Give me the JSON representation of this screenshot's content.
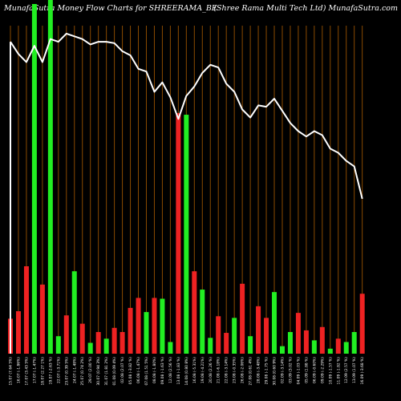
{
  "header": {
    "left": "MunafaSutra  Money Flow  Charts for SHREERAMA_BE",
    "right": "(Shree   Rama  Multi   Tech Ltd) MunafaSutra.com"
  },
  "colors": {
    "background": "#000000",
    "up": "#22ee22",
    "down": "#ee2222",
    "grid": "#8a4a00",
    "line": "#ffffff"
  },
  "chart_data": {
    "type": "bar",
    "title": "MunafaSutra Money Flow Charts for SHREERAMA_BE",
    "categories": [
      "15.07 (7.64 5%)",
      "16.07 (-1.86%)",
      "17.07 (3.43 5%)",
      "17.07 (-1.47%)",
      "18.07 (2.27 1%)",
      "19.07 (-2.63 %)",
      "22.07 (-3.71%)",
      "23.07 (0.39 5%)",
      "24.07 (-1.48%)",
      "25.07 (0.74 2%)",
      "29.07 (2.00 %)",
      "30.07 (0.94 3%)",
      "31.07 (1.81 2%)",
      "01.08 (0.09 4%)",
      "02.08 (2.07 %)",
      "05.08 (-3.82 %)",
      "06.08 (-1.47%)",
      "07.08 (1.51 5%)",
      "08.08 (-1.80%)",
      "09.08 (-1.63 %)",
      "12.08 (2.56 %)",
      "13.08 (-1.83 %)",
      "14.08 (0.80 8%)",
      "16.08 (-5.31%)",
      "19.08 (-4.21%)",
      "20.08 (2.26 %)",
      "21.08 (-6.18%)",
      "22.08 (-3.14%)",
      "23.08 (-0.35%)",
      "26.08 (-2.06%)",
      "27.08 (0.61 4%)",
      "28.08 (-3.48%)",
      "29.08 (-1.75 %)",
      "30.08 (0.60 9%)",
      "02.09 (-3.14%)",
      "03.09 (3.02 %)",
      "04.09 (-1.03 %)",
      "05.09 (1.88 %)",
      "06.09 (-0.60%)",
      "09.09 (-2.29%)",
      "10.09 (-1.57 %)",
      "11.09 (-1.82 %)",
      "12.09 (2.57 %)",
      "13.09 (1.07 %)",
      "16.09 (-3.68 %)"
    ],
    "money_flow": [
      42,
      51,
      105,
      420,
      83,
      480,
      21,
      46,
      99,
      36,
      13,
      26,
      18,
      31,
      26,
      55,
      67,
      50,
      67,
      66,
      14,
      289,
      287,
      99,
      77,
      19,
      45,
      25,
      43,
      84,
      21,
      57,
      43,
      74,
      9,
      26,
      49,
      28,
      16,
      32,
      6,
      18,
      14,
      26,
      72
    ],
    "direction": [
      "down",
      "down",
      "down",
      "up",
      "down",
      "up",
      "up",
      "down",
      "up",
      "down",
      "up",
      "down",
      "up",
      "down",
      "down",
      "down",
      "down",
      "up",
      "down",
      "up",
      "up",
      "down",
      "up",
      "down",
      "up",
      "up",
      "down",
      "down",
      "up",
      "down",
      "up",
      "down",
      "down",
      "up",
      "up",
      "up",
      "down",
      "down",
      "up",
      "down",
      "up",
      "down",
      "up",
      "up",
      "down"
    ],
    "price": [
      2.31,
      2.22,
      2.16,
      2.28,
      2.16,
      2.33,
      2.31,
      2.37,
      2.35,
      2.33,
      2.29,
      2.31,
      2.31,
      2.3,
      2.24,
      2.21,
      2.11,
      2.09,
      1.94,
      2.01,
      1.9,
      1.74,
      1.91,
      1.98,
      2.08,
      2.14,
      2.12,
      2.0,
      1.94,
      1.81,
      1.75,
      1.84,
      1.83,
      1.89,
      1.8,
      1.71,
      1.65,
      1.61,
      1.65,
      1.62,
      1.52,
      1.49,
      1.43,
      1.39,
      1.15
    ],
    "ylim": [
      0,
      420
    ],
    "price_ylim": [
      0,
      2.5
    ],
    "grid": true
  }
}
